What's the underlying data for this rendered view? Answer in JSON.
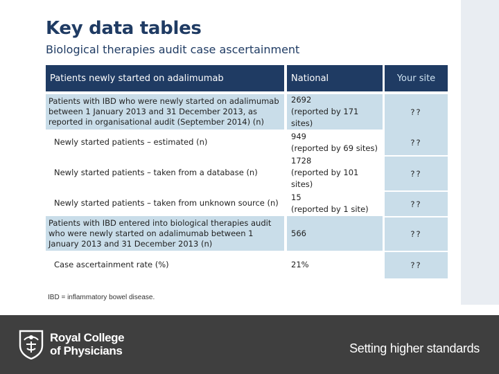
{
  "title": "Key data tables",
  "subtitle": "Biological therapies audit case ascertainment",
  "table": {
    "headers": {
      "measure": "Patients newly started on adalimumab",
      "national": "National",
      "site": "Your site"
    },
    "rows": [
      {
        "measure": "Patients with IBD who were newly started on adalimumab between 1 January 2013 and 31 December 2013, as reported in organisational audit (September 2014) (n)",
        "national_value": "2692",
        "national_note": "(reported by 171 sites)",
        "site": "??"
      },
      {
        "measure": "Newly started patients – estimated (n)",
        "national_value": "949",
        "national_note": "(reported by 69 sites)",
        "site": "??"
      },
      {
        "measure": "Newly started patients – taken from a database (n)",
        "national_value": "1728",
        "national_note": "(reported by 101 sites)",
        "site": "??"
      },
      {
        "measure": "Newly started patients – taken from unknown source (n)",
        "national_value": "15",
        "national_note": "(reported by 1 site)",
        "site": "??"
      },
      {
        "measure": "Patients with IBD entered into biological therapies audit who were newly started on adalimumab between 1 January 2013 and 31 December 2013 (n)",
        "national_value": "566",
        "national_note": "",
        "site": "??"
      },
      {
        "measure": "Case ascertainment rate (%)",
        "national_value": "21%",
        "national_note": "",
        "site": "??"
      }
    ]
  },
  "footnote": "IBD = inflammatory bowel disease.",
  "footer": {
    "org_line1": "Royal College",
    "org_line2": "of Physicians",
    "tagline": "Setting higher standards",
    "logo_icon": "rcp-crest-icon"
  },
  "colors": {
    "header_bg": "#1f3b63",
    "row_shade": "#c9dde9",
    "footer_bg": "#3f3f3f",
    "title": "#1f3b63"
  }
}
